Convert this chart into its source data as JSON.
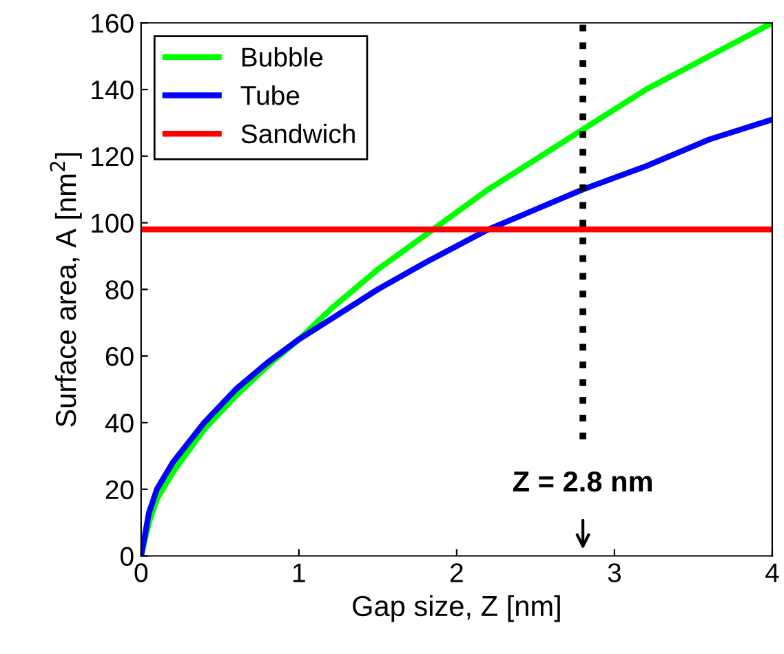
{
  "chart_data": {
    "type": "line",
    "xlabel": "Gap size, Z [nm]",
    "ylabel": "Surface area, A [nm$^{2}$]",
    "xlim": [
      0,
      4
    ],
    "ylim": [
      0,
      160
    ],
    "xticks": [
      0,
      1,
      2,
      3,
      4
    ],
    "yticks": [
      0,
      20,
      40,
      60,
      80,
      100,
      120,
      140,
      160
    ],
    "grid": false,
    "legend": "top left",
    "line_style": "solid",
    "series": [
      {
        "name": "Bubble",
        "color": "#00ff00",
        "x": [
          0,
          0.05,
          0.1,
          0.2,
          0.4,
          0.6,
          0.8,
          1,
          1.2,
          1.5,
          1.85,
          2.2,
          2.5,
          2.8,
          3.2,
          3.6,
          4
        ],
        "values": [
          0,
          10,
          17,
          25,
          38,
          48,
          57,
          65,
          74,
          86,
          98,
          110,
          119,
          128,
          140,
          150,
          160
        ]
      },
      {
        "name": "Tube",
        "color": "#0000ff",
        "x": [
          0,
          0.05,
          0.1,
          0.2,
          0.4,
          0.6,
          0.8,
          1,
          1.2,
          1.5,
          1.8,
          2.2,
          2.5,
          2.8,
          3.2,
          3.6,
          4
        ],
        "values": [
          0,
          13,
          20,
          28,
          40,
          50,
          58,
          65,
          71,
          80,
          88,
          98,
          104,
          110,
          117,
          125,
          131
        ]
      },
      {
        "name": "Sandwich",
        "color": "#ff0000",
        "x": [
          0,
          4
        ],
        "values": [
          98,
          98
        ]
      },
      {
        "color": "#000000",
        "line_style": "dotted",
        "x": [
          2.8,
          2.8
        ],
        "values": [
          35,
          160
        ]
      }
    ],
    "annotations": [
      "Z = 2.8 nm"
    ]
  }
}
